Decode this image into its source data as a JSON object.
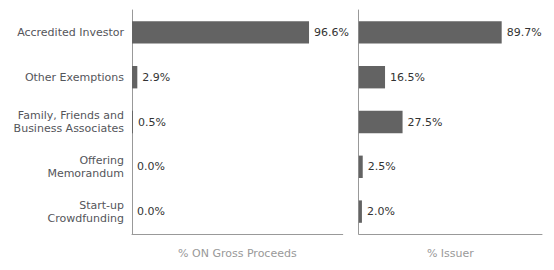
{
  "chart_data": [
    {
      "type": "bar",
      "orientation": "horizontal",
      "categories": [
        "Accredited Investor",
        "Other Exemptions",
        "Family, Friends and\nBusiness Associates",
        "Offering\nMemorandum",
        "Start-up\nCrowdfunding"
      ],
      "values": [
        96.6,
        2.9,
        0.5,
        0.0,
        0.0
      ],
      "value_labels": [
        "96.6%",
        "2.9%",
        "0.5%",
        "0.0%",
        "0.0%"
      ],
      "data_labels": true,
      "color": "#636363",
      "xlabel": "% ON Gross Proceeds",
      "xlim": [
        0,
        115
      ],
      "tick_labels": "y",
      "grid": false
    },
    {
      "type": "bar",
      "orientation": "horizontal",
      "categories": [
        "Accredited Investor",
        "Other Exemptions",
        "Family, Friends and\nBusiness Associates",
        "Offering\nMemorandum",
        "Start-up\nCrowdfunding"
      ],
      "values": [
        89.7,
        16.5,
        27.5,
        2.5,
        2.0
      ],
      "value_labels": [
        "89.7%",
        "16.5%",
        "27.5%",
        "2.5%",
        "2.0%"
      ],
      "data_labels": true,
      "color": "#636363",
      "xlabel": "% Issuer",
      "xlim": [
        0,
        115
      ],
      "tick_labels": false,
      "grid": false
    }
  ]
}
